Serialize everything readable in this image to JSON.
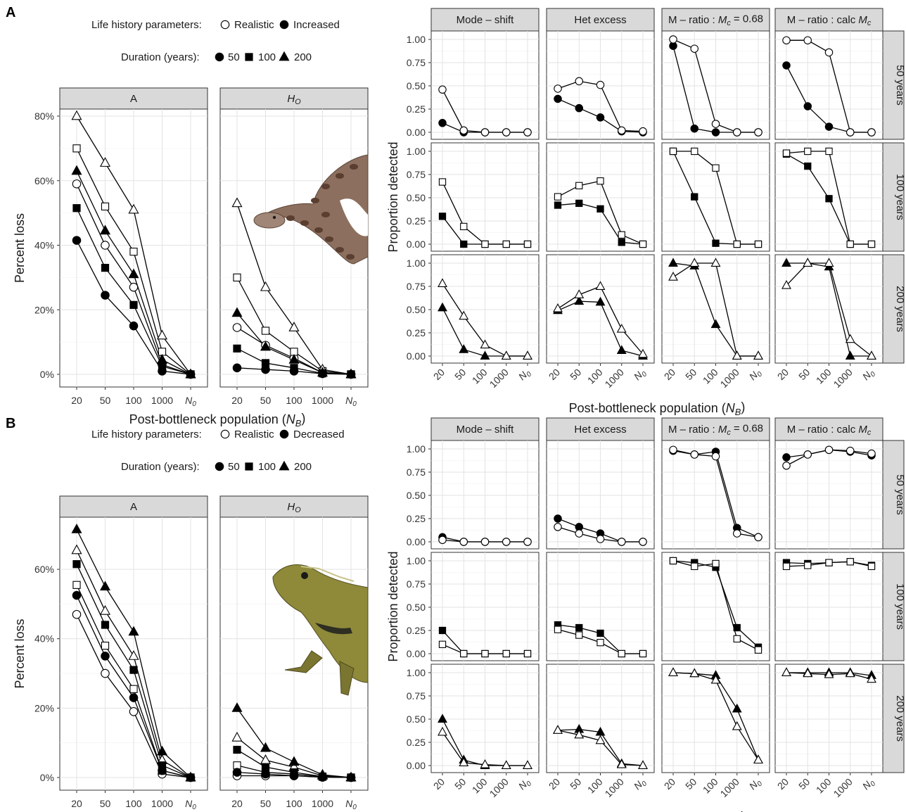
{
  "figure": {
    "labels": [
      "A",
      "B"
    ],
    "legend_life_title": "Life history parameters:",
    "legend_realistic": "Realistic",
    "legend_increased": "Increased",
    "legend_decreased": "Decreased",
    "legend_duration_title": "Duration (years):",
    "durations": [
      "50",
      "100",
      "200"
    ],
    "left_xlabel": "Post-bottleneck population (N_B)",
    "left_ylabel": "Percent loss",
    "right_xlabel": "Post-bottleneck population (N_B)",
    "right_ylabel": "Proportion detected",
    "left_facets": [
      "A",
      "H_O"
    ],
    "right_cols": [
      "Mode – shift",
      "Het excess",
      "M – ratio : M_c = 0.68",
      "M – ratio : calc M_c"
    ],
    "right_rows": [
      "50 years",
      "100 years",
      "200 years"
    ],
    "x_categories": [
      "20",
      "50",
      "100",
      "1000",
      "N_0"
    ],
    "photos": [
      "snake-photo",
      "lizard-photo"
    ]
  },
  "chart_data": [
    {
      "type": "line",
      "panel": "A-left",
      "ylabel": "Percent loss",
      "xlabel": "Post-bottleneck population (N_B)",
      "categories": [
        "20",
        "50",
        "100",
        "1000",
        "N_0"
      ],
      "yticks": [
        "0%",
        "20%",
        "40%",
        "60%",
        "80%"
      ],
      "ylim": [
        0,
        80
      ],
      "facets": [
        {
          "name": "A",
          "series": [
            {
              "fill": "open",
              "duration": "50",
              "values": [
                59,
                40,
                27,
                3,
                0
              ]
            },
            {
              "fill": "open",
              "duration": "100",
              "values": [
                70,
                52,
                38,
                7,
                0
              ]
            },
            {
              "fill": "open",
              "duration": "200",
              "values": [
                80,
                65.5,
                51,
                12,
                0
              ]
            },
            {
              "fill": "filled",
              "duration": "50",
              "values": [
                41.5,
                24.5,
                15,
                1,
                0
              ]
            },
            {
              "fill": "filled",
              "duration": "100",
              "values": [
                51.5,
                33,
                21.5,
                2.5,
                0
              ]
            },
            {
              "fill": "filled",
              "duration": "200",
              "values": [
                63,
                44.5,
                31,
                4.5,
                0
              ]
            }
          ]
        },
        {
          "name": "H_O",
          "series": [
            {
              "fill": "open",
              "duration": "50",
              "values": [
                14.5,
                9,
                5,
                0.5,
                0
              ]
            },
            {
              "fill": "open",
              "duration": "100",
              "values": [
                30,
                13.5,
                7,
                1,
                0
              ]
            },
            {
              "fill": "open",
              "duration": "200",
              "values": [
                53,
                27,
                14.5,
                1.5,
                0
              ]
            },
            {
              "fill": "filled",
              "duration": "50",
              "values": [
                2,
                1.5,
                1,
                0.2,
                0
              ]
            },
            {
              "fill": "filled",
              "duration": "100",
              "values": [
                8,
                3.5,
                2,
                0.3,
                0
              ]
            },
            {
              "fill": "filled",
              "duration": "200",
              "values": [
                19,
                8.5,
                4.5,
                0.5,
                0
              ]
            }
          ]
        }
      ]
    },
    {
      "type": "line",
      "panel": "A-right",
      "ylabel": "Proportion detected",
      "xlabel": "Post-bottleneck population (N_B)",
      "categories": [
        "20",
        "50",
        "100",
        "1000",
        "N_0"
      ],
      "yticks": [
        "0.00",
        "0.25",
        "0.50",
        "0.75",
        "1.00"
      ],
      "ylim": [
        0,
        1
      ],
      "grid": [
        [
          {
            "open": [
              0.46,
              0.02,
              0.0,
              0.0,
              0.0
            ],
            "filled": [
              0.1,
              0.0,
              0.0,
              0.0,
              0.0
            ]
          },
          {
            "open": [
              0.47,
              0.55,
              0.51,
              0.02,
              0.01
            ],
            "filled": [
              0.36,
              0.26,
              0.16,
              0.01,
              0.0
            ]
          },
          {
            "open": [
              1.0,
              0.9,
              0.09,
              0.0,
              0.0
            ],
            "filled": [
              0.93,
              0.04,
              0.0,
              0.0,
              0.0
            ]
          },
          {
            "open": [
              0.99,
              0.99,
              0.86,
              0.0,
              0.0
            ],
            "filled": [
              0.72,
              0.28,
              0.06,
              0.0,
              0.0
            ]
          }
        ],
        [
          {
            "open": [
              0.67,
              0.19,
              0.0,
              0.0,
              0.0
            ],
            "filled": [
              0.3,
              0.0,
              0.0,
              0.0,
              0.0
            ]
          },
          {
            "open": [
              0.51,
              0.63,
              0.68,
              0.1,
              0.0
            ],
            "filled": [
              0.42,
              0.44,
              0.38,
              0.02,
              0.0
            ]
          },
          {
            "open": [
              1.0,
              1.0,
              0.82,
              0.0,
              0.0
            ],
            "filled": [
              1.0,
              0.51,
              0.01,
              0.0,
              0.0
            ]
          },
          {
            "open": [
              0.98,
              1.0,
              1.0,
              0.0,
              0.0
            ],
            "filled": [
              0.97,
              0.84,
              0.49,
              0.0,
              0.0
            ]
          }
        ],
        [
          {
            "open": [
              0.78,
              0.43,
              0.12,
              0.0,
              0.0
            ],
            "filled": [
              0.52,
              0.07,
              0.0,
              0.0,
              0.0
            ]
          },
          {
            "open": [
              0.51,
              0.66,
              0.75,
              0.29,
              0.02
            ],
            "filled": [
              0.49,
              0.59,
              0.58,
              0.06,
              0.0
            ]
          },
          {
            "open": [
              0.85,
              1.0,
              1.0,
              0.0,
              0.0
            ],
            "filled": [
              1.0,
              0.97,
              0.34,
              0.0,
              0.0
            ]
          },
          {
            "open": [
              0.76,
              1.0,
              1.0,
              0.18,
              0.0
            ],
            "filled": [
              1.0,
              1.0,
              0.96,
              0.0,
              0.0
            ]
          }
        ]
      ]
    },
    {
      "type": "line",
      "panel": "B-left",
      "ylabel": "Percent loss",
      "xlabel": "Post-bottleneck population (N_B)",
      "categories": [
        "20",
        "50",
        "100",
        "1000",
        "N_0"
      ],
      "yticks": [
        "0%",
        "20%",
        "40%",
        "60%"
      ],
      "ylim": [
        0,
        73
      ],
      "facets": [
        {
          "name": "A",
          "series": [
            {
              "fill": "open",
              "duration": "50",
              "values": [
                47,
                30,
                19,
                1,
                0
              ]
            },
            {
              "fill": "open",
              "duration": "100",
              "values": [
                55.5,
                38,
                25.5,
                2,
                0
              ]
            },
            {
              "fill": "open",
              "duration": "200",
              "values": [
                65.5,
                48,
                35,
                5,
                0
              ]
            },
            {
              "fill": "filled",
              "duration": "50",
              "values": [
                52.5,
                35,
                23,
                2,
                0
              ]
            },
            {
              "fill": "filled",
              "duration": "100",
              "values": [
                61.5,
                44,
                31,
                3.5,
                0
              ]
            },
            {
              "fill": "filled",
              "duration": "200",
              "values": [
                71.5,
                55,
                42,
                7.5,
                0
              ]
            }
          ]
        },
        {
          "name": "H_O",
          "series": [
            {
              "fill": "open",
              "duration": "50",
              "values": [
                0.5,
                0.5,
                0.5,
                0.1,
                0
              ]
            },
            {
              "fill": "open",
              "duration": "100",
              "values": [
                3.5,
                1.5,
                1,
                0.2,
                0
              ]
            },
            {
              "fill": "open",
              "duration": "200",
              "values": [
                11.5,
                5,
                3,
                0.5,
                0
              ]
            },
            {
              "fill": "filled",
              "duration": "50",
              "values": [
                1.5,
                1,
                0.5,
                0.1,
                0
              ]
            },
            {
              "fill": "filled",
              "duration": "100",
              "values": [
                8,
                3,
                1.5,
                0.3,
                0
              ]
            },
            {
              "fill": "filled",
              "duration": "200",
              "values": [
                20,
                8.5,
                4.5,
                0.8,
                0
              ]
            }
          ]
        }
      ]
    },
    {
      "type": "line",
      "panel": "B-right",
      "ylabel": "Proportion detected",
      "xlabel": "Post-bottleneck population (N_B)",
      "categories": [
        "20",
        "50",
        "100",
        "1000",
        "N_0"
      ],
      "yticks": [
        "0.00",
        "0.25",
        "0.50",
        "0.75",
        "1.00"
      ],
      "ylim": [
        0,
        1
      ],
      "grid": [
        [
          {
            "open": [
              0.02,
              0.0,
              0.0,
              0.0,
              0.0
            ],
            "filled": [
              0.05,
              0.0,
              0.0,
              0.0,
              0.0
            ]
          },
          {
            "open": [
              0.16,
              0.09,
              0.03,
              0.0,
              0.0
            ],
            "filled": [
              0.25,
              0.16,
              0.09,
              0.0,
              0.0
            ]
          },
          {
            "open": [
              0.99,
              0.94,
              0.92,
              0.09,
              0.05
            ],
            "filled": [
              0.98,
              0.94,
              0.97,
              0.15,
              0.05
            ]
          },
          {
            "open": [
              0.82,
              0.94,
              0.99,
              0.98,
              0.95
            ],
            "filled": [
              0.91,
              0.94,
              0.99,
              0.97,
              0.93
            ]
          }
        ],
        [
          {
            "open": [
              0.1,
              0.0,
              0.0,
              0.0,
              0.0
            ],
            "filled": [
              0.25,
              0.0,
              0.0,
              0.0,
              0.0
            ]
          },
          {
            "open": [
              0.26,
              0.2,
              0.12,
              0.0,
              0.0
            ],
            "filled": [
              0.31,
              0.28,
              0.22,
              0.0,
              0.0
            ]
          },
          {
            "open": [
              1.0,
              0.94,
              0.97,
              0.16,
              0.04
            ],
            "filled": [
              1.0,
              0.98,
              0.93,
              0.28,
              0.07
            ]
          },
          {
            "open": [
              0.94,
              0.95,
              0.98,
              0.99,
              0.94
            ],
            "filled": [
              0.98,
              0.97,
              0.98,
              0.99,
              0.95
            ]
          }
        ],
        [
          {
            "open": [
              0.36,
              0.03,
              0.01,
              0.0,
              0.0
            ],
            "filled": [
              0.5,
              0.06,
              0.0,
              0.0,
              0.0
            ]
          },
          {
            "open": [
              0.38,
              0.33,
              0.27,
              0.01,
              0.0
            ],
            "filled": [
              0.38,
              0.39,
              0.36,
              0.02,
              0.0
            ]
          },
          {
            "open": [
              1.0,
              0.99,
              0.92,
              0.42,
              0.06
            ],
            "filled": [
              1.0,
              0.99,
              0.97,
              0.61,
              0.06
            ]
          },
          {
            "open": [
              1.0,
              0.99,
              0.98,
              0.99,
              0.93
            ],
            "filled": [
              1.0,
              1.0,
              1.0,
              1.0,
              0.97
            ]
          }
        ]
      ]
    }
  ]
}
